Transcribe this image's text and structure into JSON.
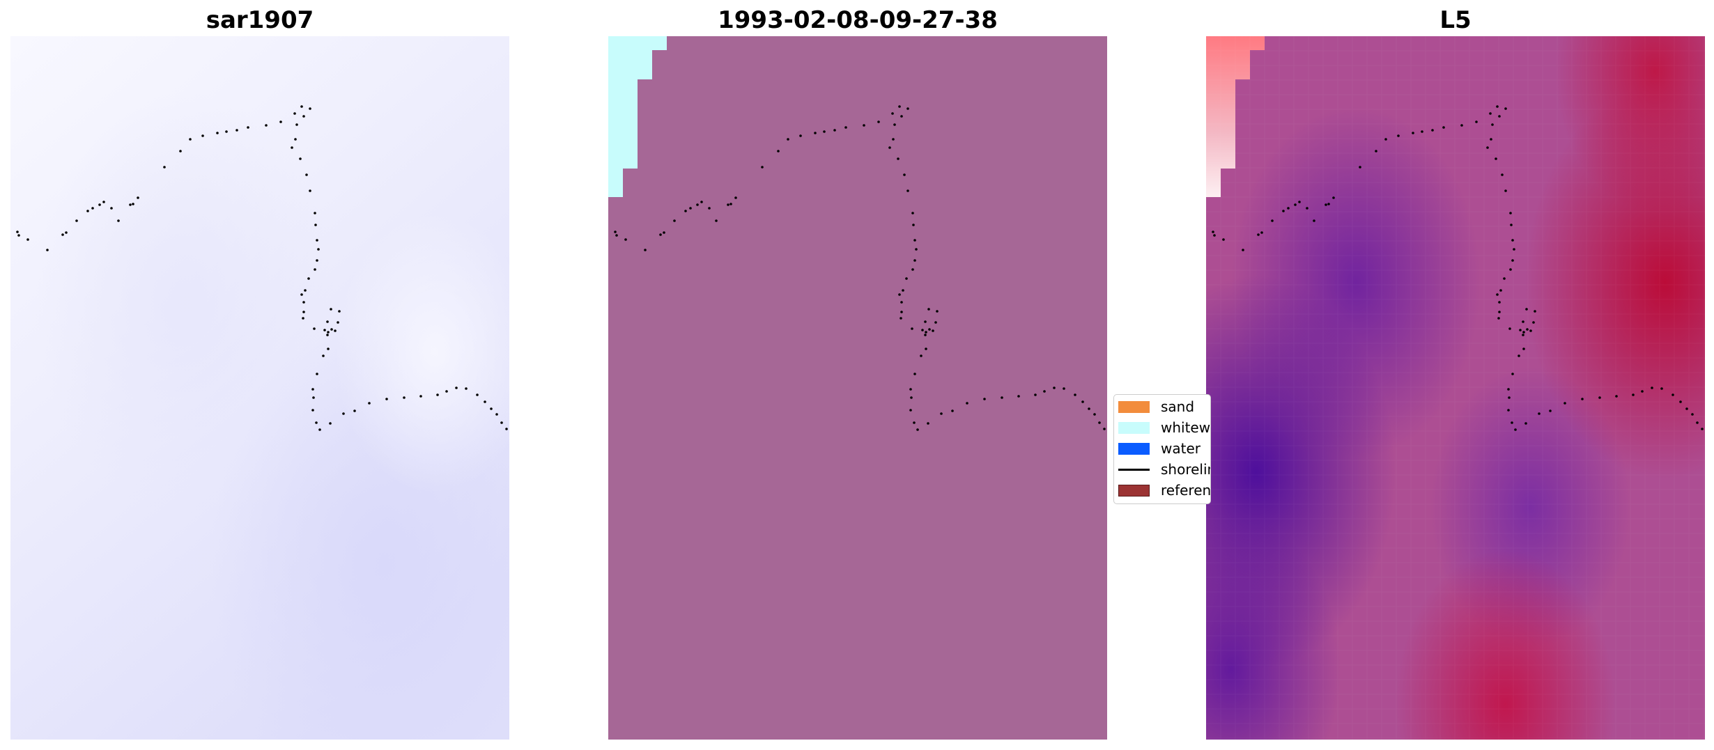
{
  "figure": {
    "panels": [
      {
        "id": "sar",
        "title": "sar1907"
      },
      {
        "id": "class",
        "title": "1993-02-08-09-27-38"
      },
      {
        "id": "l5",
        "title": "L5"
      }
    ]
  },
  "legend": {
    "placement": "between middle and right panels",
    "items": [
      {
        "label": "sand",
        "color": "#f28c3c",
        "kind": "patch"
      },
      {
        "label": "whitewater",
        "color": "#c8fcfc",
        "kind": "patch"
      },
      {
        "label": "water",
        "color": "#0a5cff",
        "kind": "patch"
      },
      {
        "label": "shoreline",
        "color": "#000000",
        "kind": "line"
      },
      {
        "label": "reference",
        "color": "#9b3333",
        "kind": "patch"
      }
    ]
  },
  "colors": {
    "sar_light": "#f6f6fe",
    "sar_dark": "#dcdcfa",
    "class_fill": "#a66796",
    "class_whitewater": "#c8fcfc",
    "l5_purple": "#4e0f9c",
    "l5_magenta": "#b0176e",
    "l5_crimson": "#bb0c38",
    "shoreline_dots": "#000000"
  },
  "shoreline_path": [
    [
      10,
      281
    ],
    [
      12,
      286
    ],
    [
      25,
      292
    ],
    [
      53,
      307
    ],
    [
      75,
      285
    ],
    [
      80,
      282
    ],
    [
      95,
      265
    ],
    [
      111,
      251
    ],
    [
      118,
      247
    ],
    [
      128,
      242
    ],
    [
      134,
      238
    ],
    [
      145,
      247
    ],
    [
      155,
      265
    ],
    [
      172,
      242
    ],
    [
      176,
      241
    ],
    [
      183,
      232
    ],
    [
      221,
      188
    ],
    [
      244,
      165
    ],
    [
      258,
      148
    ],
    [
      276,
      143
    ],
    [
      297,
      139
    ],
    [
      310,
      137
    ],
    [
      325,
      135
    ],
    [
      341,
      131
    ],
    [
      367,
      128
    ],
    [
      388,
      123
    ],
    [
      408,
      111
    ],
    [
      418,
      101
    ],
    [
      430,
      104
    ],
    [
      421,
      115
    ],
    [
      411,
      127
    ],
    [
      409,
      148
    ],
    [
      404,
      160
    ],
    [
      416,
      176
    ],
    [
      425,
      199
    ],
    [
      430,
      222
    ],
    [
      437,
      254
    ],
    [
      438,
      271
    ],
    [
      440,
      293
    ],
    [
      442,
      306
    ],
    [
      440,
      322
    ],
    [
      437,
      335
    ],
    [
      428,
      348
    ],
    [
      423,
      365
    ],
    [
      418,
      371
    ],
    [
      421,
      382
    ],
    [
      421,
      396
    ],
    [
      420,
      405
    ],
    [
      436,
      420
    ],
    [
      451,
      422
    ],
    [
      456,
      425
    ],
    [
      461,
      421
    ],
    [
      466,
      423
    ],
    [
      470,
      411
    ],
    [
      472,
      395
    ],
    [
      460,
      392
    ],
    [
      455,
      410
    ],
    [
      455,
      429
    ],
    [
      456,
      449
    ],
    [
      449,
      459
    ],
    [
      440,
      485
    ],
    [
      434,
      507
    ],
    [
      435,
      519
    ],
    [
      434,
      537
    ],
    [
      439,
      555
    ],
    [
      444,
      565
    ],
    [
      459,
      556
    ],
    [
      478,
      542
    ],
    [
      494,
      538
    ],
    [
      515,
      527
    ],
    [
      540,
      521
    ],
    [
      565,
      519
    ],
    [
      589,
      517
    ],
    [
      613,
      515
    ],
    [
      626,
      510
    ],
    [
      640,
      505
    ],
    [
      654,
      506
    ],
    [
      670,
      515
    ],
    [
      681,
      525
    ],
    [
      690,
      535
    ],
    [
      698,
      543
    ],
    [
      705,
      555
    ],
    [
      712,
      564
    ]
  ]
}
